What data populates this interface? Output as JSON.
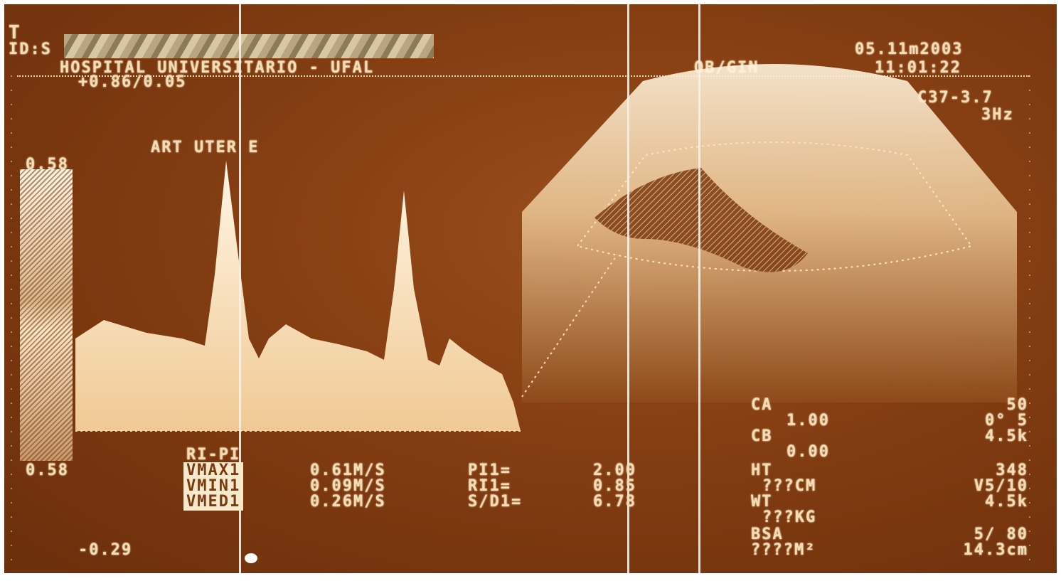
{
  "header": {
    "logo_glyph": "T",
    "id_label": "ID:S",
    "hospital": "HOSPITAL UNIVERSITARIO - UFAL",
    "exam_type": "OB/GIN",
    "date": "05.11m2003",
    "time": "11:01:22",
    "ratio": "+0.86/0.05",
    "probe": "C37-3.7",
    "frequency": "3Hz"
  },
  "spectrum": {
    "vessel_label": "ART UTER E",
    "scale_top": "0.58",
    "scale_mid": "0.58",
    "scale_bottom": "-0.29"
  },
  "measurements": {
    "title": "RI-PI",
    "rows": [
      {
        "label": "VMAX1",
        "value": "0.61M/S",
        "index_label": "PI1=",
        "index_value": "2.00"
      },
      {
        "label": "VMIN1",
        "value": "0.09M/S",
        "index_label": "RI1=",
        "index_value": "0.85"
      },
      {
        "label": "VMED1",
        "value": "0.26M/S",
        "index_label": "S/D1=",
        "index_value": "6.78"
      }
    ]
  },
  "patient": {
    "ca_label": "CA",
    "ca_value": "1.00",
    "cb_label": "CB",
    "cb_value": "0.00",
    "ht_label": "HT",
    "ht_value": "???CM",
    "wt_label": "WT",
    "wt_value": "???KG",
    "bsa_label": "BSA",
    "bsa_value": "????M²"
  },
  "settings": {
    "gain": "50",
    "angle": "0° 5",
    "prf1": "4.5k",
    "depth_code": "348",
    "volume": "V5/10",
    "prf2": "4.5k",
    "ratio": "5/ 80",
    "depth": "14.3cm"
  },
  "colors": {
    "background": "#7f3a10",
    "text": "#f6dcb2",
    "spectrum": "#fff2d8"
  }
}
